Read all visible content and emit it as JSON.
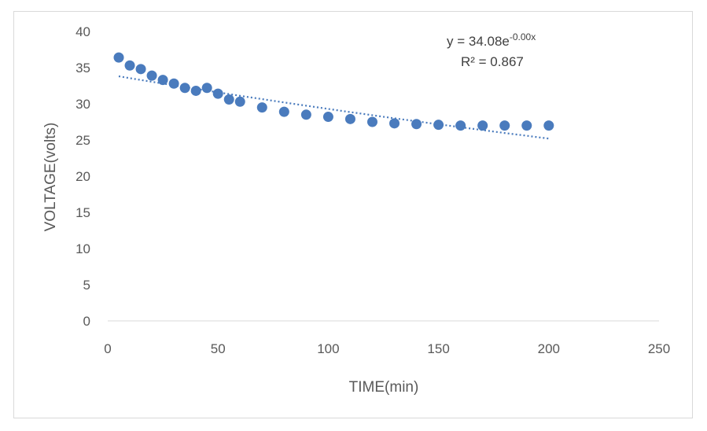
{
  "chart_data": {
    "type": "scatter",
    "xlabel": "TIME(min)",
    "ylabel": "VOLTAGE(volts)",
    "xlim": [
      0,
      250
    ],
    "ylim": [
      0,
      40
    ],
    "x_ticks": [
      "0",
      "50",
      "100",
      "150",
      "200",
      "250"
    ],
    "y_ticks": [
      "0",
      "5",
      "10",
      "15",
      "20",
      "25",
      "30",
      "35",
      "40"
    ],
    "grid": false,
    "legend": "none",
    "marker_color": "#4a7bbd",
    "trendline_color": "#4a7bbd",
    "series": [
      {
        "x": [
          5,
          10,
          15,
          20,
          25,
          30,
          35,
          40,
          45,
          50,
          55,
          60,
          70,
          80,
          90,
          100,
          110,
          120,
          130,
          140,
          150,
          160,
          170,
          180,
          190,
          200
        ],
        "y": [
          36.4,
          35.3,
          34.8,
          33.9,
          33.3,
          32.8,
          32.2,
          31.8,
          32.2,
          31.4,
          30.6,
          30.3,
          29.5,
          28.9,
          28.5,
          28.2,
          27.9,
          27.5,
          27.3,
          27.2,
          27.1,
          27.0,
          27.0,
          27.0,
          27.0,
          27.0
        ]
      }
    ],
    "trendline": {
      "type": "exponential",
      "x_start": 5,
      "y_start": 33.8,
      "x_end": 200,
      "y_end": 25.2
    },
    "annotations": {
      "equation_prefix": "y = 34.08e",
      "equation_exponent": "-0.00x",
      "r_squared": "R² = 0.867"
    }
  }
}
